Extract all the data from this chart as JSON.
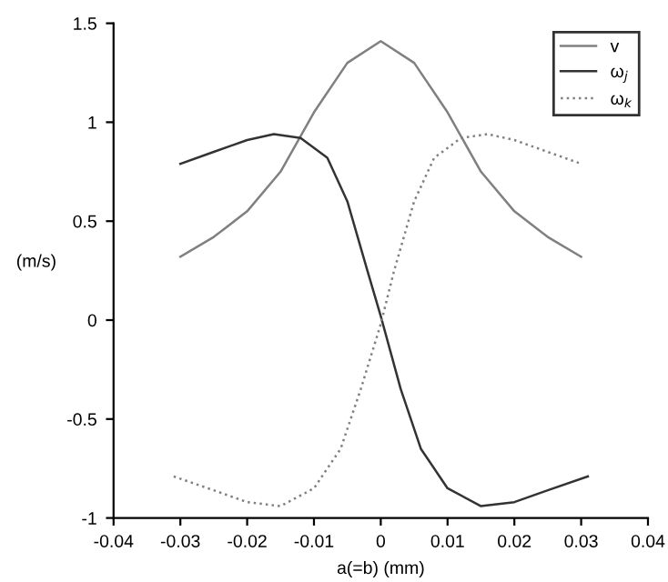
{
  "chart_data": {
    "type": "line",
    "xlabel": "a(=b) (mm)",
    "ylabel": "(m/s)",
    "xlim": [
      -0.04,
      0.04
    ],
    "xticks": [
      -0.04,
      -0.03,
      -0.02,
      -0.01,
      0,
      0.01,
      0.02,
      0.03,
      0.04
    ],
    "ylim": [
      -1,
      1.5
    ],
    "yticks": [
      -1,
      -0.5,
      0,
      0.5,
      1,
      1.5
    ],
    "grid": false,
    "legend": "top right",
    "series": [
      {
        "name": "v",
        "color": "#808080",
        "line_style": "solid",
        "x": [
          -0.03,
          -0.025,
          -0.02,
          -0.015,
          -0.01,
          -0.005,
          0,
          0.005,
          0.01,
          0.015,
          0.02,
          0.025,
          0.03
        ],
        "values": [
          0.32,
          0.42,
          0.55,
          0.75,
          1.05,
          1.3,
          1.41,
          1.3,
          1.05,
          0.75,
          0.55,
          0.42,
          0.32
        ]
      },
      {
        "name": "ω$_{j}$",
        "color": "#333333",
        "line_style": "solid",
        "x": [
          -0.03,
          -0.025,
          -0.02,
          -0.016,
          -0.012,
          -0.008,
          -0.005,
          -0.002,
          0,
          0.003,
          0.006,
          0.01,
          0.015,
          0.02,
          0.025,
          0.031
        ],
        "values": [
          0.79,
          0.85,
          0.91,
          0.94,
          0.92,
          0.82,
          0.6,
          0.25,
          0.02,
          -0.35,
          -0.65,
          -0.85,
          -0.94,
          -0.92,
          -0.86,
          -0.79
        ]
      },
      {
        "name": "ω$_{k}$",
        "color": "#808080",
        "line_style": "dotted",
        "x": [
          -0.031,
          -0.025,
          -0.02,
          -0.015,
          -0.01,
          -0.006,
          -0.003,
          0,
          0.002,
          0.005,
          0.008,
          0.012,
          0.016,
          0.02,
          0.025,
          0.03
        ],
        "values": [
          -0.79,
          -0.86,
          -0.92,
          -0.94,
          -0.85,
          -0.65,
          -0.35,
          -0.02,
          0.25,
          0.6,
          0.82,
          0.92,
          0.94,
          0.91,
          0.85,
          0.79
        ]
      }
    ]
  }
}
